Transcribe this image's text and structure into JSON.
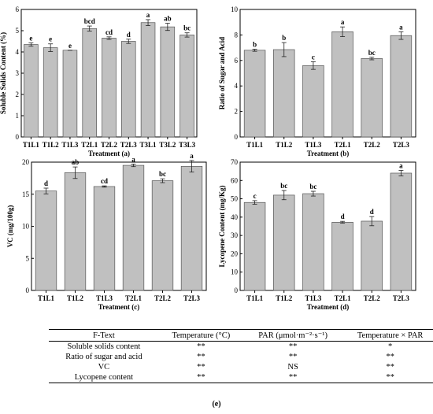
{
  "chart_data": [
    {
      "type": "bar",
      "ylabel": "Soluble Solids Content (%)",
      "xlabel": "Treatment (a)",
      "ylim": [
        0,
        6
      ],
      "yticks": [
        0,
        1,
        2,
        3,
        4,
        5,
        6
      ],
      "categories": [
        "T1L1",
        "T1L2",
        "T1L3",
        "T2L1",
        "T2L2",
        "T2L3",
        "T3L1",
        "T3L2",
        "T3L3"
      ],
      "values": [
        4.35,
        4.2,
        4.08,
        5.1,
        4.65,
        4.5,
        5.38,
        5.18,
        4.8
      ],
      "errors": [
        0.08,
        0.18,
        0.0,
        0.12,
        0.06,
        0.1,
        0.14,
        0.17,
        0.1
      ],
      "letters": [
        "e",
        "e",
        "e",
        "bcd",
        "cd",
        "d",
        "a",
        "ab",
        "bc"
      ]
    },
    {
      "type": "bar",
      "ylabel": "Ratio of Sugar and Acid",
      "xlabel": "Treatment (b)",
      "ylim": [
        0,
        10
      ],
      "yticks": [
        0,
        2,
        4,
        6,
        8,
        10
      ],
      "categories": [
        "T1L1",
        "T1L2",
        "T1L3",
        "T2L1",
        "T2L2",
        "T2L3"
      ],
      "values": [
        6.8,
        6.85,
        5.6,
        8.25,
        6.15,
        7.95
      ],
      "errors": [
        0.08,
        0.55,
        0.3,
        0.38,
        0.1,
        0.3
      ],
      "letters": [
        "b",
        "b",
        "c",
        "a",
        "bc",
        "a"
      ]
    },
    {
      "type": "bar",
      "ylabel": "VC (mg/100g)",
      "xlabel": "Treatment (c)",
      "ylim": [
        0,
        20
      ],
      "yticks": [
        0,
        5,
        10,
        15,
        20
      ],
      "categories": [
        "T1L1",
        "T1L2",
        "T1L3",
        "T2L1",
        "T2L2",
        "T2L3"
      ],
      "values": [
        15.5,
        18.35,
        16.2,
        19.5,
        17.1,
        19.35
      ],
      "errors": [
        0.45,
        0.9,
        0.1,
        0.2,
        0.3,
        0.9
      ],
      "letters": [
        "d",
        "ab",
        "cd",
        "a",
        "bc",
        "a"
      ]
    },
    {
      "type": "bar",
      "ylabel": "Lycopene Content (mg/Kg)",
      "xlabel": "Treatment (d)",
      "ylim": [
        0,
        70
      ],
      "yticks": [
        0,
        10,
        20,
        30,
        40,
        50,
        60,
        70
      ],
      "categories": [
        "T1L1",
        "T1L2",
        "T1L3",
        "T2L1",
        "T2L2",
        "T2L3"
      ],
      "values": [
        48.0,
        52.0,
        52.8,
        37.2,
        37.8,
        64.0
      ],
      "errors": [
        1.0,
        2.5,
        1.3,
        0.5,
        2.5,
        1.5
      ],
      "letters": [
        "c",
        "bc",
        "bc",
        "d",
        "d",
        "a"
      ]
    }
  ],
  "table": {
    "headers": [
      "F-Text",
      "Temperature (°C)",
      "PAR (μmol·m⁻²·s⁻¹)",
      "Temperature × PAR"
    ],
    "rows": [
      [
        "Soluble solids content",
        "**",
        "**",
        "*"
      ],
      [
        "Ratio of sugar and acid",
        "**",
        "**",
        "**"
      ],
      [
        "VC",
        "**",
        "NS",
        "**"
      ],
      [
        "Lycopene content",
        "**",
        "**",
        "**"
      ]
    ],
    "caption": "(e)"
  }
}
